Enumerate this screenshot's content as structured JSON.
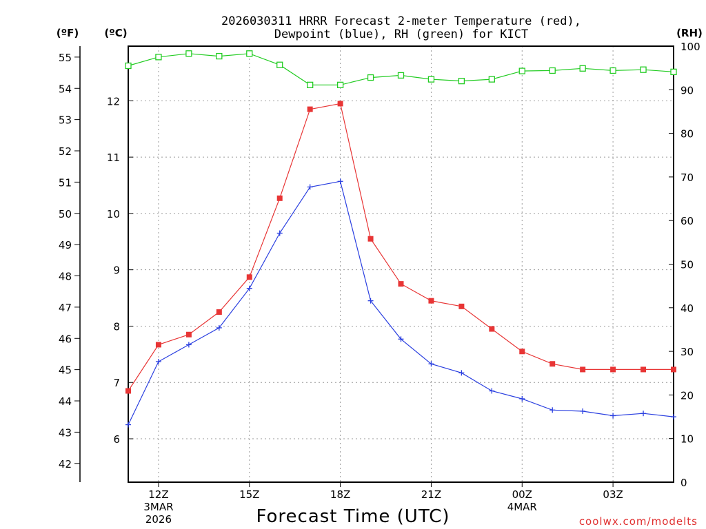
{
  "chart_data": {
    "type": "line",
    "title_line1": "2026030311 HRRR Forecast 2-meter Temperature (red),",
    "title_line2": "Dewpoint (blue), RH (green) for KICT",
    "xlabel": "Forecast Time (UTC)",
    "credit": "coolwx.com/modelts",
    "unit_labels": {
      "fahrenheit": "(ºF)",
      "celsius": "(ºC)",
      "rh": "(RH)"
    },
    "x": [
      11,
      12,
      13,
      14,
      15,
      16,
      17,
      18,
      19,
      20,
      21,
      22,
      23,
      24,
      25,
      26,
      27,
      28,
      29
    ],
    "xlim": [
      11,
      29
    ],
    "x_ticks": [
      {
        "x": 12,
        "lines": [
          "12Z",
          "3MAR",
          "2026"
        ]
      },
      {
        "x": 15,
        "lines": [
          "15Z"
        ]
      },
      {
        "x": 18,
        "lines": [
          "18Z"
        ]
      },
      {
        "x": 21,
        "lines": [
          "21Z"
        ]
      },
      {
        "x": 24,
        "lines": [
          "00Z",
          "4MAR"
        ]
      },
      {
        "x": 27,
        "lines": [
          "03Z"
        ]
      }
    ],
    "celsius_axis": {
      "ylim": [
        5.23,
        12.97
      ],
      "ticks": [
        "6",
        "7",
        "8",
        "9",
        "10",
        "11",
        "12"
      ]
    },
    "fahrenheit_axis": {
      "ylim": [
        41.4,
        55.35
      ],
      "ticks": [
        "42",
        "43",
        "44",
        "45",
        "46",
        "47",
        "48",
        "49",
        "50",
        "51",
        "52",
        "53",
        "54",
        "55"
      ]
    },
    "rh_axis": {
      "ylim": [
        0,
        100
      ],
      "ticks": [
        "0",
        "10",
        "20",
        "30",
        "40",
        "50",
        "60",
        "70",
        "80",
        "90",
        "100"
      ]
    },
    "series": [
      {
        "name": "Temperature",
        "axis": "celsius",
        "color": "#e83535",
        "marker": "filled-square",
        "values": [
          6.85,
          7.67,
          7.85,
          8.25,
          8.87,
          10.27,
          11.85,
          11.95,
          9.55,
          8.75,
          8.45,
          8.35,
          7.95,
          7.55,
          7.33,
          7.23,
          7.23,
          7.23,
          7.23
        ]
      },
      {
        "name": "Dewpoint",
        "axis": "celsius",
        "color": "#2a3fe0",
        "marker": "plus",
        "values": [
          6.25,
          7.37,
          7.67,
          7.97,
          8.67,
          9.65,
          10.47,
          10.57,
          8.45,
          7.77,
          7.33,
          7.17,
          6.85,
          6.71,
          6.51,
          6.49,
          6.41,
          6.45,
          6.39
        ]
      },
      {
        "name": "RH",
        "axis": "rh",
        "color": "#22cc22",
        "marker": "open-square",
        "values": [
          95.5,
          97.5,
          98.3,
          97.7,
          98.3,
          95.7,
          91.1,
          91.1,
          92.8,
          93.3,
          92.4,
          92.0,
          92.4,
          94.3,
          94.4,
          94.9,
          94.4,
          94.6,
          94.1
        ]
      }
    ]
  }
}
